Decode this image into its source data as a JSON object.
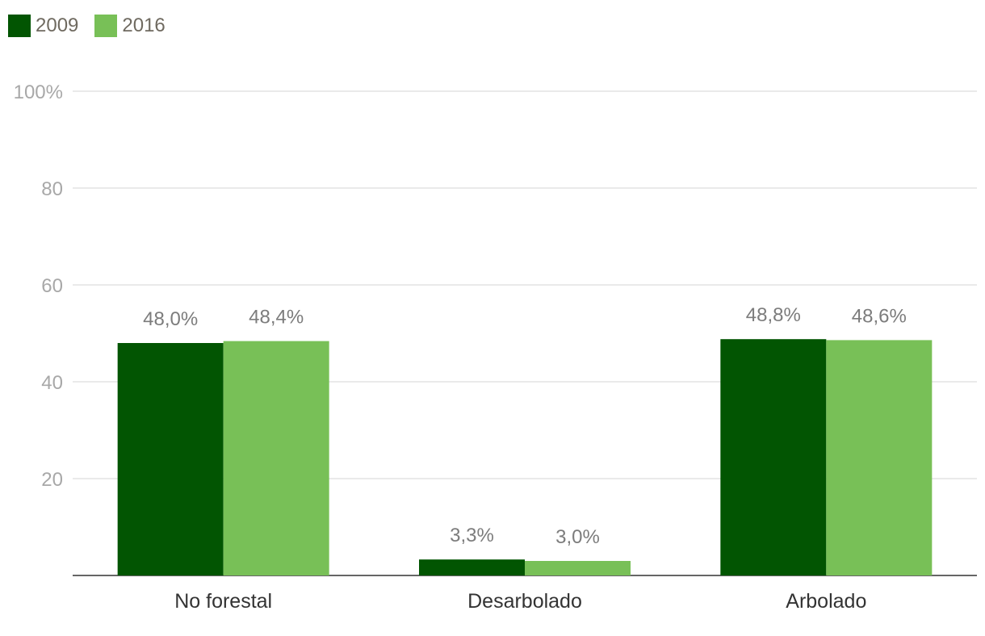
{
  "chart_data": {
    "type": "bar",
    "title": "",
    "xlabel": "",
    "ylabel": "",
    "categories": [
      "No forestal",
      "Desarbolado",
      "Arbolado"
    ],
    "series": [
      {
        "name": "2009",
        "color": "#025502",
        "values": [
          48.0,
          3.3,
          48.8
        ],
        "labels": [
          "48,0%",
          "3,3%",
          "48,8%"
        ]
      },
      {
        "name": "2016",
        "color": "#78c057",
        "values": [
          48.4,
          3.0,
          48.6
        ],
        "labels": [
          "48,4%",
          "3,0%",
          "48,6%"
        ]
      }
    ],
    "ylim": [
      0,
      100
    ],
    "yticks": [
      20,
      40,
      60,
      80,
      100
    ],
    "ytick_labels": [
      "20",
      "40",
      "60",
      "80",
      "100%"
    ],
    "grid": true,
    "legend_position": "top-left"
  }
}
